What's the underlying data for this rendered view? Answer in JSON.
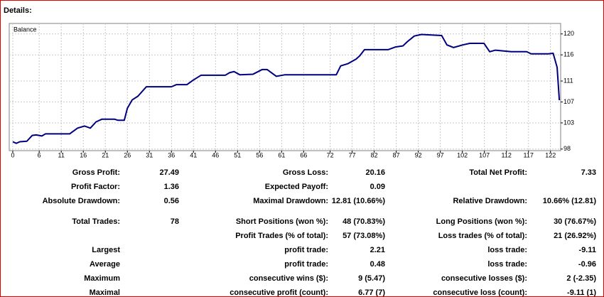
{
  "header": {
    "title": "Details:"
  },
  "chart_data": {
    "type": "line",
    "title": "Balance",
    "x": [
      0,
      0.8,
      1.6,
      3.2,
      4.4,
      5.3,
      6.6,
      7.4,
      12.9,
      14.7,
      16.3,
      17.6,
      18.9,
      20.2,
      23.1,
      23.9,
      25.3,
      26.0,
      27.1,
      28.4,
      30.3,
      36.0,
      37.1,
      39.5,
      40.8,
      42.7,
      48.2,
      49.2,
      50.2,
      51.5,
      54.5,
      56.6,
      57.7,
      59.8,
      61.8,
      65.0,
      69.5,
      73.4,
      74.4,
      76.0,
      77.9,
      78.7,
      79.8,
      85.2,
      86.8,
      88.5,
      89.5,
      91.1,
      92.7,
      97.3,
      98.5,
      100.0,
      102.1,
      103.7,
      106.9,
      108.2,
      109.5,
      113.1,
      116.6,
      117.6,
      121.5,
      122.6,
      123.5,
      124.0
    ],
    "series": [
      {
        "name": "Balance",
        "color": "#00007f",
        "values": [
          99.4,
          99.1,
          99.4,
          99.5,
          100.6,
          100.7,
          100.5,
          100.9,
          100.9,
          102.0,
          102.4,
          102.0,
          103.2,
          103.7,
          103.7,
          103.5,
          103.5,
          105.8,
          107.4,
          108.1,
          109.9,
          109.9,
          110.3,
          110.3,
          111.1,
          112.1,
          112.1,
          112.6,
          112.8,
          112.2,
          112.3,
          113.2,
          113.2,
          111.9,
          112.2,
          112.2,
          112.2,
          112.2,
          113.9,
          114.3,
          115.2,
          115.8,
          117.0,
          117.0,
          117.5,
          117.7,
          118.5,
          119.6,
          119.9,
          119.7,
          117.9,
          117.4,
          117.9,
          118.2,
          118.2,
          116.6,
          116.9,
          116.6,
          116.6,
          116.2,
          116.2,
          116.3,
          113.6,
          107.33
        ]
      }
    ],
    "xlim": [
      -0.8,
      124.3
    ],
    "ylim": [
      97.7,
      122
    ],
    "xticks": [
      0,
      6,
      11,
      16,
      21,
      26,
      31,
      36,
      41,
      46,
      51,
      56,
      61,
      66,
      72,
      77,
      82,
      87,
      92,
      97,
      102,
      107,
      112,
      117,
      122
    ],
    "yticks": [
      98,
      103,
      107,
      111,
      116,
      120
    ],
    "grid": true
  },
  "table": {
    "rows": [
      {
        "c1": [
          "Gross Profit:",
          "27.49"
        ],
        "c2": [
          "Gross Loss:",
          "20.16"
        ],
        "c3": [
          "Total Net Profit:",
          "7.33"
        ]
      },
      {
        "c1": [
          "Profit Factor:",
          "1.36"
        ],
        "c2": [
          "Expected Payoff:",
          "0.09"
        ]
      },
      {
        "c1": [
          "Absolute Drawdown:",
          "0.56"
        ],
        "c2": [
          "Maximal Drawdown:",
          "12.81 (10.66%)"
        ],
        "c3": [
          "Relative Drawdown:",
          "10.66% (12.81)"
        ]
      },
      {
        "c1": [
          "Total Trades:",
          "78"
        ],
        "c2": [
          "Short Positions (won %):",
          "48 (70.83%)"
        ],
        "c3": [
          "Long Positions (won %):",
          "30 (76.67%)"
        ]
      },
      {
        "c2": [
          "Profit Trades (% of total):",
          "57 (73.08%)"
        ],
        "c3": [
          "Loss trades (% of total):",
          "21 (26.92%)"
        ]
      },
      {
        "c1": [
          "Largest"
        ],
        "c2": [
          "profit trade:",
          "2.21"
        ],
        "c3": [
          "loss trade:",
          "-9.11"
        ]
      },
      {
        "c1": [
          "Average"
        ],
        "c2": [
          "profit trade:",
          "0.48"
        ],
        "c3": [
          "loss trade:",
          "-0.96"
        ]
      },
      {
        "c1": [
          "Maximum"
        ],
        "c2": [
          "consecutive wins ($):",
          "9 (5.47)"
        ],
        "c3": [
          "consecutive losses ($):",
          "2 (-2.35)"
        ]
      },
      {
        "c1": [
          "Maximal"
        ],
        "c2": [
          "consecutive profit (count):",
          "6.77 (7)"
        ],
        "c3": [
          "consecutive loss (count):",
          "-9.11 (1)"
        ]
      }
    ]
  }
}
